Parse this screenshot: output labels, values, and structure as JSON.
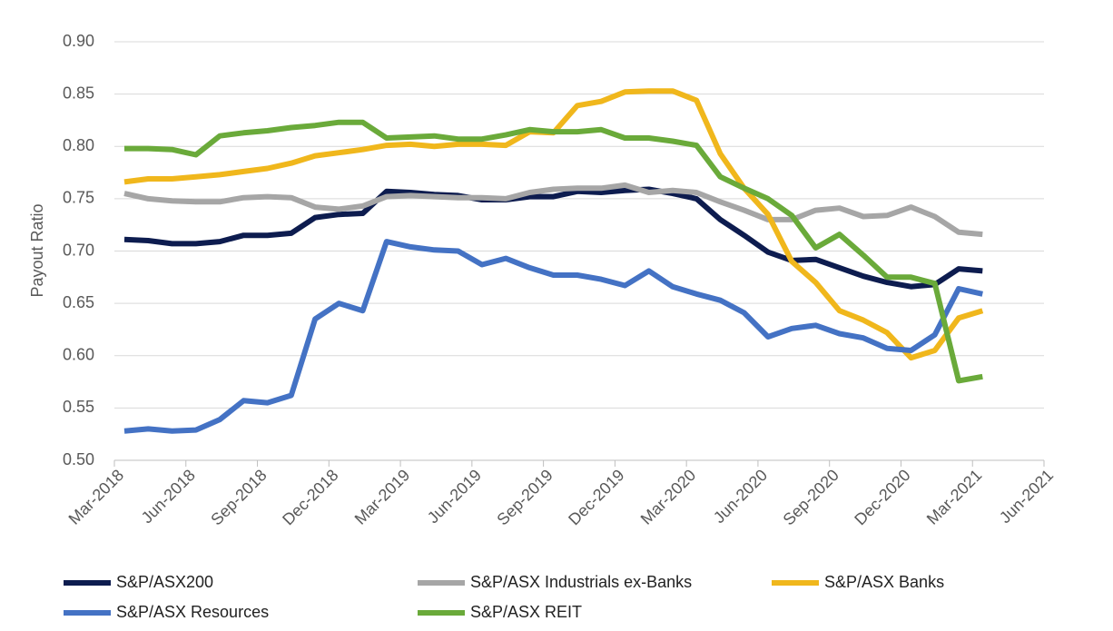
{
  "chart_data": {
    "type": "line",
    "y_label": "Payout Ratio",
    "x": [
      "2018-03",
      "2018-04",
      "2018-05",
      "2018-06",
      "2018-07",
      "2018-08",
      "2018-09",
      "2018-10",
      "2018-11",
      "2018-12",
      "2019-01",
      "2019-02",
      "2019-03",
      "2019-04",
      "2019-05",
      "2019-06",
      "2019-07",
      "2019-08",
      "2019-09",
      "2019-10",
      "2019-11",
      "2019-12",
      "2020-01",
      "2020-02",
      "2020-03",
      "2020-04",
      "2020-05",
      "2020-06",
      "2020-07",
      "2020-08",
      "2020-09",
      "2020-10",
      "2020-11",
      "2020-12",
      "2021-01",
      "2021-02",
      "2021-03"
    ],
    "xlim": [
      "2018-03",
      "2021-06"
    ],
    "xticks": [
      {
        "value": "2018-03",
        "label": "Mar-2018"
      },
      {
        "value": "2018-06",
        "label": "Jun-2018"
      },
      {
        "value": "2018-09",
        "label": "Sep-2018"
      },
      {
        "value": "2018-12",
        "label": "Dec-2018"
      },
      {
        "value": "2019-03",
        "label": "Mar-2019"
      },
      {
        "value": "2019-06",
        "label": "Jun-2019"
      },
      {
        "value": "2019-09",
        "label": "Sep-2019"
      },
      {
        "value": "2019-12",
        "label": "Dec-2019"
      },
      {
        "value": "2020-03",
        "label": "Mar-2020"
      },
      {
        "value": "2020-06",
        "label": "Jun-2020"
      },
      {
        "value": "2020-09",
        "label": "Sep-2020"
      },
      {
        "value": "2020-12",
        "label": "Dec-2020"
      },
      {
        "value": "2021-03",
        "label": "Mar-2021"
      },
      {
        "value": "2021-06",
        "label": "Jun-2021"
      }
    ],
    "ylim": [
      0.5,
      0.9
    ],
    "yticks": [
      {
        "value": 0.5,
        "label": "0.50"
      },
      {
        "value": 0.55,
        "label": "0.55"
      },
      {
        "value": 0.6,
        "label": "0.60"
      },
      {
        "value": 0.65,
        "label": "0.65"
      },
      {
        "value": 0.7,
        "label": "0.70"
      },
      {
        "value": 0.75,
        "label": "0.75"
      },
      {
        "value": 0.8,
        "label": "0.80"
      },
      {
        "value": 0.85,
        "label": "0.85"
      },
      {
        "value": 0.9,
        "label": "0.90"
      }
    ],
    "grid": true,
    "legend": "bottom",
    "series": [
      {
        "name": "S&P/ASX200",
        "color": "#0d1c4f",
        "values": [
          0.711,
          0.71,
          0.707,
          0.707,
          0.709,
          0.715,
          0.715,
          0.717,
          0.732,
          0.735,
          0.736,
          0.757,
          0.756,
          0.754,
          0.753,
          0.749,
          0.749,
          0.752,
          0.752,
          0.757,
          0.756,
          0.758,
          0.759,
          0.755,
          0.75,
          0.73,
          0.715,
          0.699,
          0.691,
          0.692,
          0.684,
          0.676,
          0.67,
          0.666,
          0.668,
          0.683,
          0.681
        ]
      },
      {
        "name": "S&P/ASX Industrials ex-Banks",
        "color": "#a6a6a6",
        "values": [
          0.755,
          0.75,
          0.748,
          0.747,
          0.747,
          0.751,
          0.752,
          0.751,
          0.742,
          0.74,
          0.743,
          0.752,
          0.753,
          0.752,
          0.751,
          0.751,
          0.75,
          0.756,
          0.759,
          0.76,
          0.76,
          0.763,
          0.756,
          0.758,
          0.756,
          0.747,
          0.739,
          0.73,
          0.73,
          0.739,
          0.741,
          0.733,
          0.734,
          0.742,
          0.733,
          0.718,
          0.716
        ]
      },
      {
        "name": "S&P/ASX Banks",
        "color": "#f0b71c",
        "values": [
          0.766,
          0.769,
          0.769,
          0.771,
          0.773,
          0.776,
          0.779,
          0.784,
          0.791,
          0.794,
          0.797,
          0.801,
          0.802,
          0.8,
          0.802,
          0.802,
          0.801,
          0.814,
          0.813,
          0.839,
          0.843,
          0.852,
          0.853,
          0.853,
          0.844,
          0.793,
          0.76,
          0.735,
          0.69,
          0.67,
          0.643,
          0.634,
          0.622,
          0.598,
          0.605,
          0.636,
          0.643
        ]
      },
      {
        "name": "S&P/ASX Resources",
        "color": "#4472c4",
        "values": [
          0.528,
          0.53,
          0.528,
          0.529,
          0.539,
          0.557,
          0.555,
          0.562,
          0.635,
          0.65,
          0.643,
          0.709,
          0.704,
          0.701,
          0.7,
          0.687,
          0.693,
          0.684,
          0.677,
          0.677,
          0.673,
          0.667,
          0.681,
          0.666,
          0.659,
          0.653,
          0.641,
          0.618,
          0.626,
          0.629,
          0.621,
          0.617,
          0.607,
          0.605,
          0.62,
          0.664,
          0.659
        ]
      },
      {
        "name": "S&P/ASX REIT",
        "color": "#6aaa3a",
        "values": [
          0.798,
          0.798,
          0.797,
          0.792,
          0.81,
          0.813,
          0.815,
          0.818,
          0.82,
          0.823,
          0.823,
          0.808,
          0.809,
          0.81,
          0.807,
          0.807,
          0.811,
          0.816,
          0.814,
          0.814,
          0.816,
          0.808,
          0.808,
          0.805,
          0.801,
          0.771,
          0.76,
          0.75,
          0.734,
          0.703,
          0.716,
          0.696,
          0.675,
          0.675,
          0.669,
          0.576,
          0.58
        ]
      }
    ]
  }
}
